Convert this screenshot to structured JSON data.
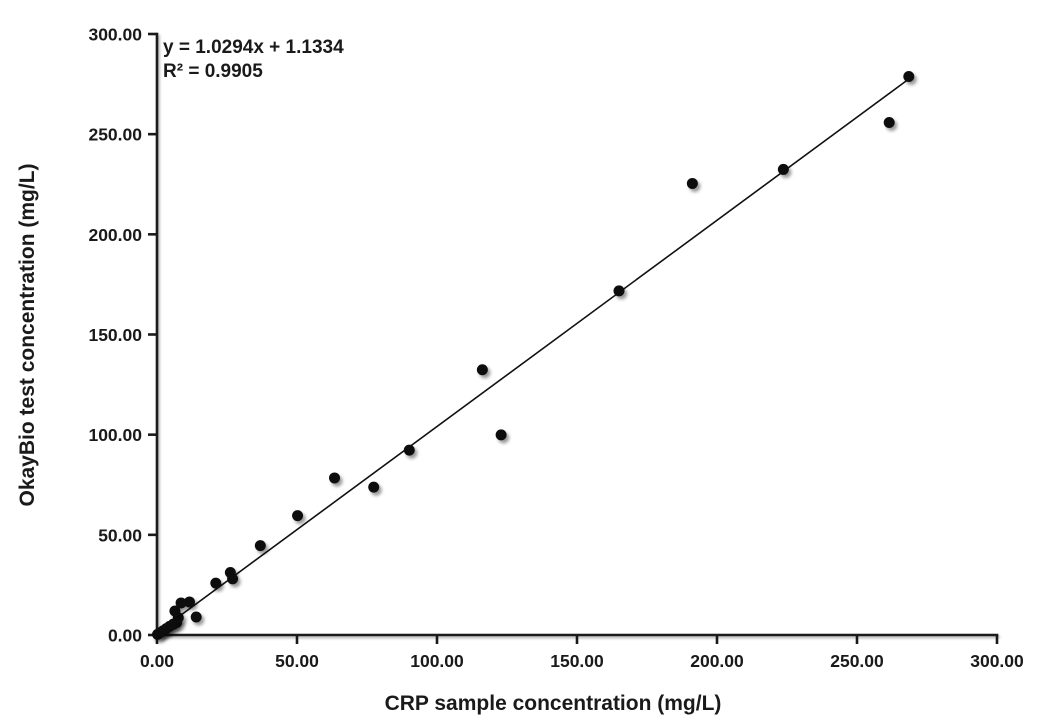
{
  "figure": {
    "background": "#ffffff",
    "axis_color": "#1a1a1a",
    "annotation": {
      "equation": "y = 1.0294x + 1.1334",
      "r_squared": "R² = 0.9905"
    }
  },
  "chart_data": {
    "type": "scatter",
    "title": "",
    "xlabel": "CRP sample concentration (mg/L)",
    "ylabel": "OkayBio test concentration (mg/L)",
    "xlim": [
      0,
      300
    ],
    "ylim": [
      0,
      300
    ],
    "x_ticks": [
      0,
      50,
      100,
      150,
      200,
      250,
      300
    ],
    "y_ticks": [
      0,
      50,
      100,
      150,
      200,
      250,
      300
    ],
    "tick_decimals": 2,
    "grid": false,
    "legend": "none",
    "marker_color": "#111111",
    "line_color": "#111111",
    "points": [
      [
        0.2,
        0.3
      ],
      [
        1.0,
        1.1
      ],
      [
        2.2,
        2.1
      ],
      [
        3.3,
        3.2
      ],
      [
        4.5,
        4.3
      ],
      [
        5.8,
        5.4
      ],
      [
        7.0,
        6.2
      ],
      [
        7.6,
        8.6
      ],
      [
        6.4,
        12.0
      ],
      [
        8.6,
        16.0
      ],
      [
        11.6,
        16.5
      ],
      [
        14.0,
        9.0
      ],
      [
        21.0,
        25.9
      ],
      [
        26.2,
        31.2
      ],
      [
        27.0,
        28.0
      ],
      [
        36.9,
        44.6
      ],
      [
        50.2,
        59.6
      ],
      [
        63.4,
        78.4
      ],
      [
        77.4,
        73.8
      ],
      [
        90.1,
        92.3
      ],
      [
        116.2,
        132.4
      ],
      [
        122.9,
        99.9
      ],
      [
        165.0,
        171.8
      ],
      [
        191.2,
        225.4
      ],
      [
        223.7,
        232.4
      ],
      [
        261.5,
        255.8
      ],
      [
        268.5,
        278.8
      ]
    ],
    "trendline": {
      "slope": 1.0294,
      "intercept": 1.1334,
      "x_range": [
        0,
        268.5
      ],
      "equation": "y = 1.0294x + 1.1334",
      "r_squared": 0.9905
    }
  }
}
